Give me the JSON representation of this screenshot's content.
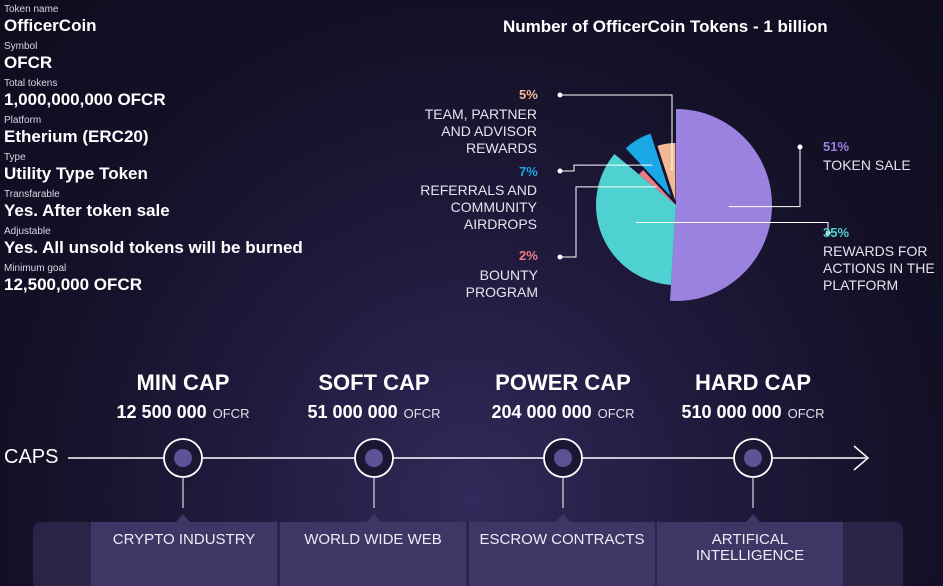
{
  "info": [
    {
      "label": "Token name",
      "value": "OfficerCoin"
    },
    {
      "label": "Symbol",
      "value": "OFCR"
    },
    {
      "label": "Total tokens",
      "value": "1,000,000,000 OFCR"
    },
    {
      "label": "Platform",
      "value": "Etherium (ERC20)"
    },
    {
      "label": "Type",
      "value": "Utility Type Token"
    },
    {
      "label": "Transfarable",
      "value": "Yes. After token sale"
    },
    {
      "label": "Adjustable",
      "value": "Yes. All unsold tokens will be burned"
    },
    {
      "label": "Minimum goal",
      "value": "12,500,000 OFCR"
    }
  ],
  "chart_data": {
    "type": "pie",
    "title": "Number of OfficerCoin Tokens - 1 billion",
    "slices": [
      {
        "label": "TOKEN SALE",
        "value": 51,
        "pct_label": "51%",
        "color": "#9b82e0"
      },
      {
        "label": "REWARDS FOR ACTIONS IN THE PLATFORM",
        "value": 35,
        "pct_label": "35%",
        "color": "#4fd1d2"
      },
      {
        "label": "BOUNTY PROGRAM",
        "value": 2,
        "pct_label": "2%",
        "color": "#f07a86"
      },
      {
        "label": "REFERRALS AND COMMUNITY AIRDROPS",
        "value": 7,
        "pct_label": "7%",
        "color": "#1aa9e6"
      },
      {
        "label": "TEAM, PARTNER AND ADVISOR REWARDS",
        "value": 5,
        "pct_label": "5%",
        "color": "#f3b895"
      }
    ]
  },
  "caps": {
    "axis_label": "CAPS",
    "items": [
      {
        "name": "MIN CAP",
        "amount": "12 500 000",
        "unit": "OFCR",
        "category": "CRYPTO INDUSTRY"
      },
      {
        "name": "SOFT CAP",
        "amount": "51 000 000",
        "unit": "OFCR",
        "category": "WORLD WIDE WEB"
      },
      {
        "name": "POWER CAP",
        "amount": "204 000 000",
        "unit": "OFCR",
        "category": "ESCROW CONTRACTS"
      },
      {
        "name": "HARD CAP",
        "amount": "510 000 000",
        "unit": "OFCR",
        "category": "ARTIFICAL INTELLIGENCE"
      }
    ]
  }
}
